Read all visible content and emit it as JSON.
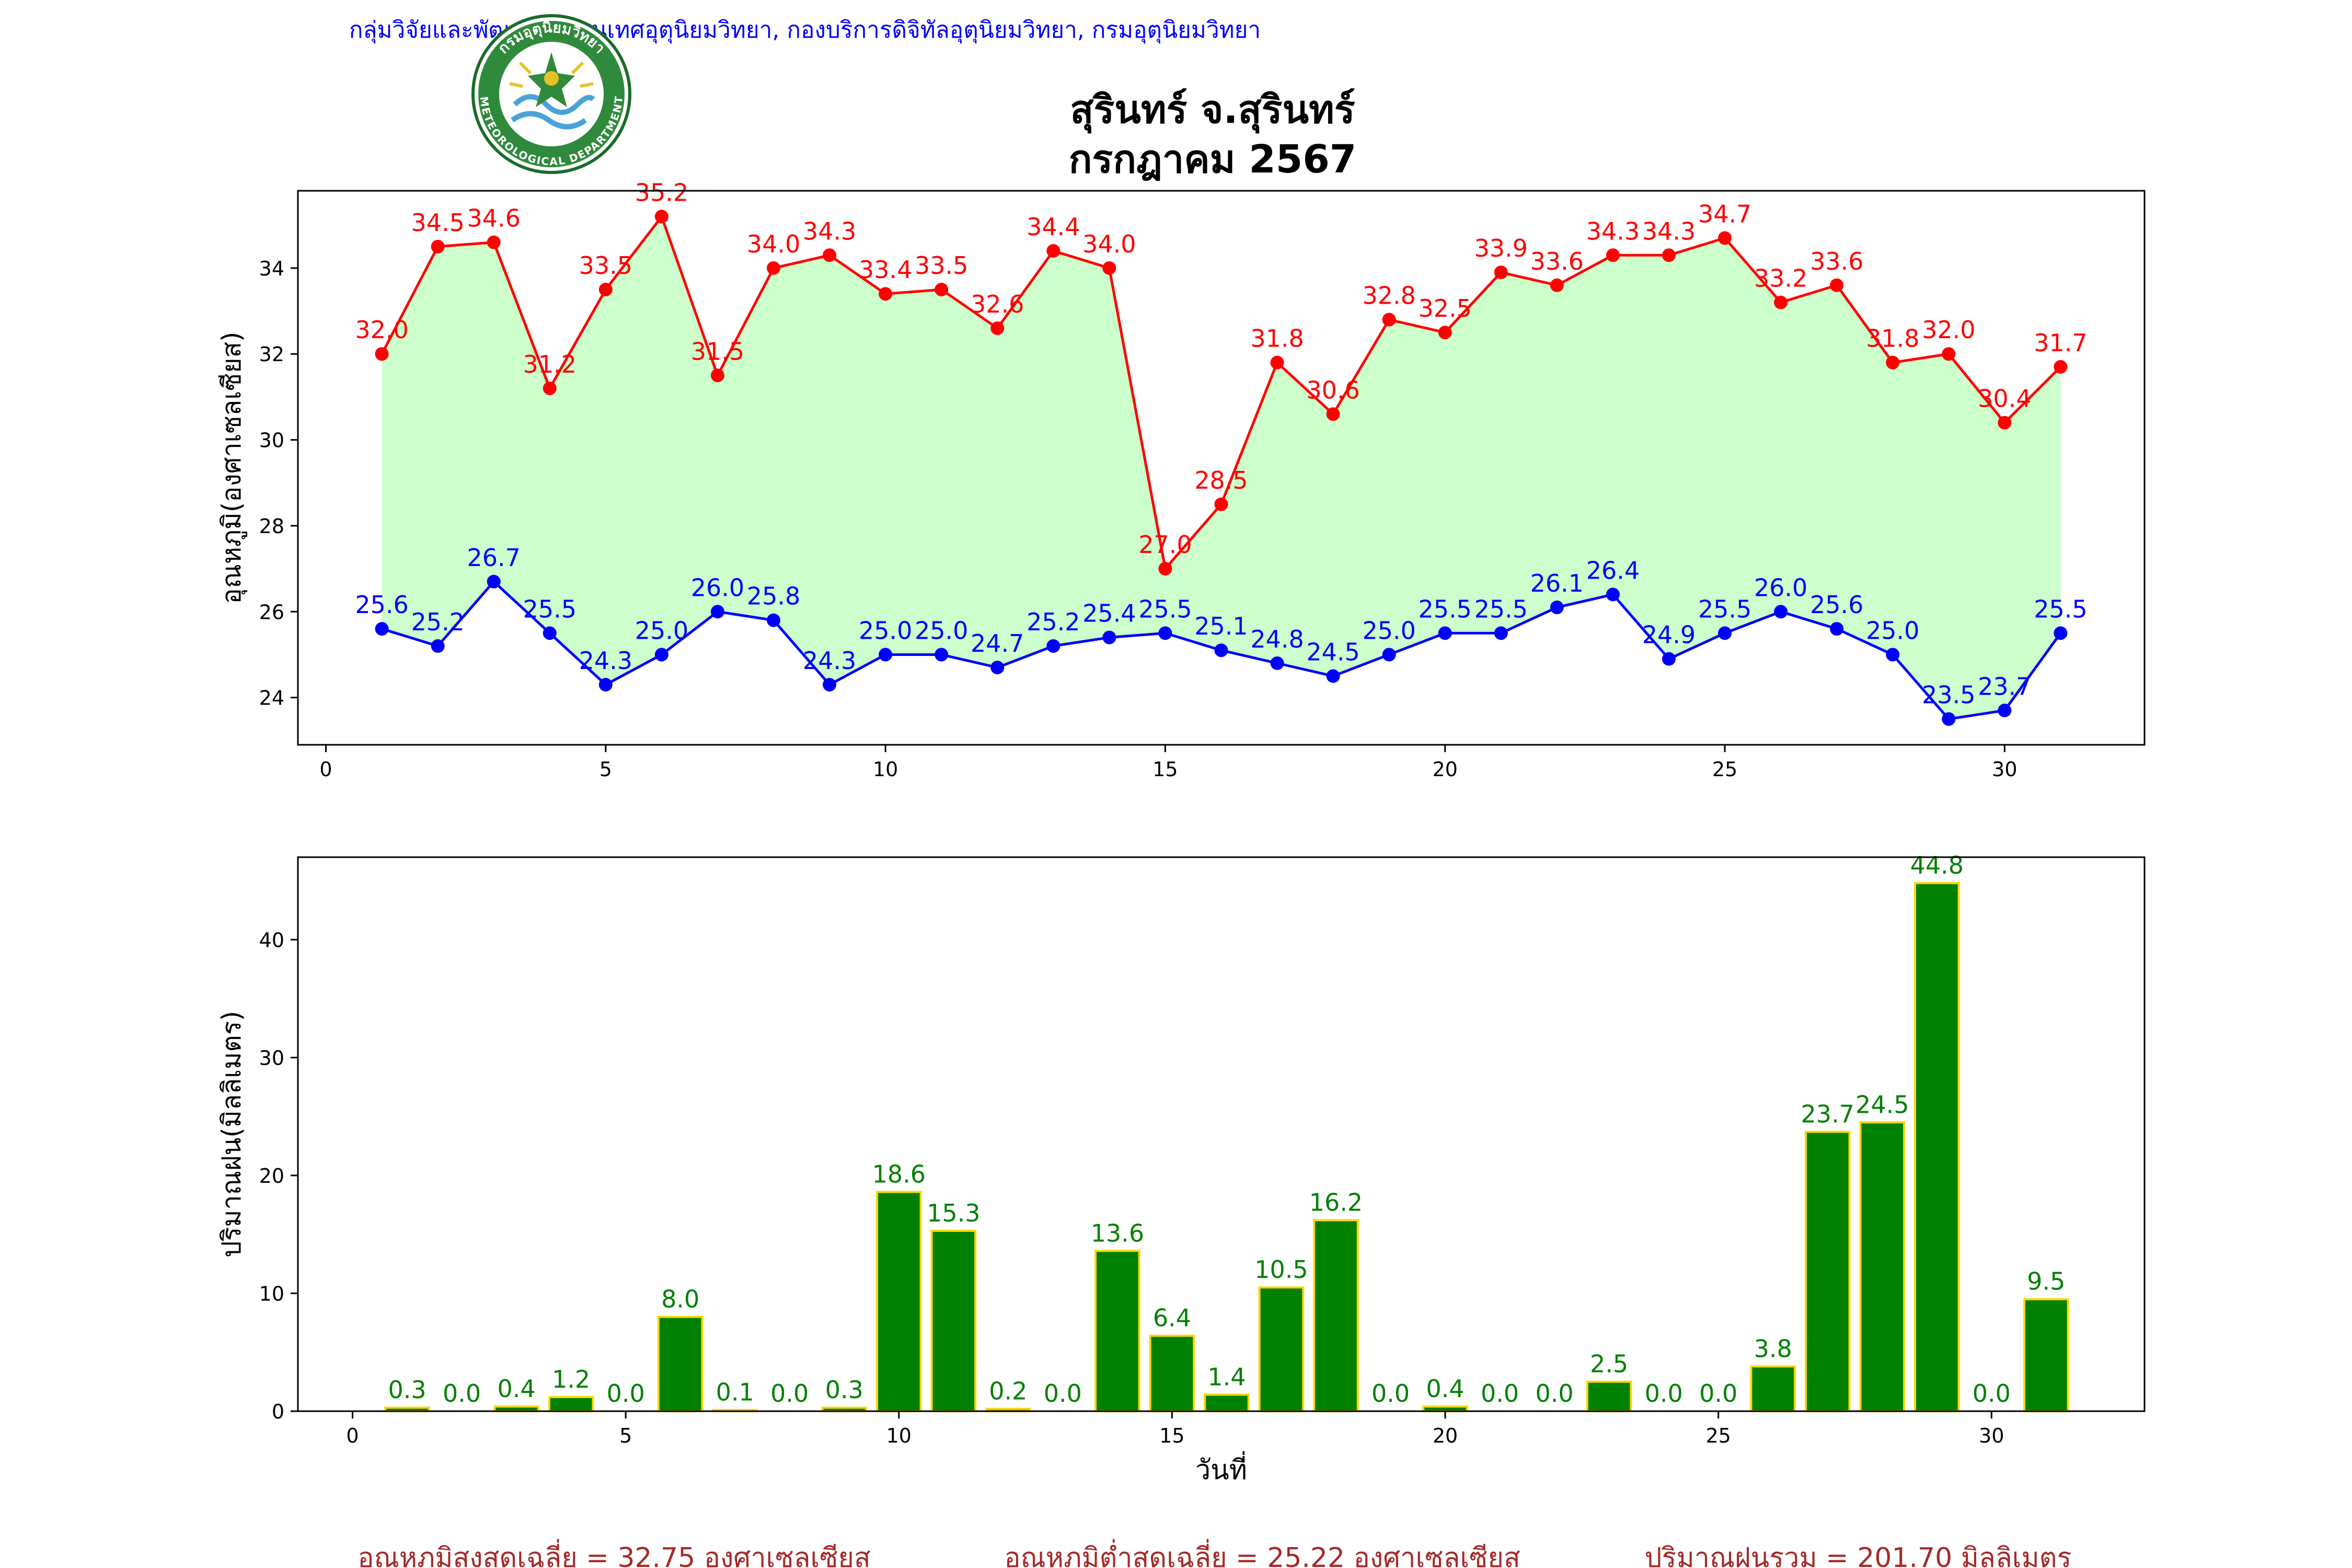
{
  "header": {
    "credit": "กลุ่มวิจัยและพัฒนาสารสนเทศอุตุนิยมวิทยา, กองบริการดิจิทัลอุตุนิยมวิทยา, กรมอุตุนิยมวิทยา",
    "logo_text_top": "กรมอุตุนิยมวิทยา",
    "logo_text_bottom": "METEOROLOGICAL DEPARTMENT"
  },
  "title": {
    "line1": "สุรินทร์ จ.สุรินทร์",
    "line2": "กรกฎาคม 2567"
  },
  "colors": {
    "max_temp": "#ff0000",
    "min_temp": "#0000ff",
    "fill_band": "#ccffcc",
    "rain_bar": "#008000",
    "rain_edge": "#ffd700",
    "rain_label": "#008000",
    "credit": "#0000ff",
    "footer": "#a52a2a"
  },
  "chart_data": [
    {
      "type": "line",
      "ylabel": "อุณหภูมิ(องศาเซลเซียส)",
      "xlim": [
        -0.5,
        32.5
      ],
      "ylim": [
        22.9,
        35.8
      ],
      "xticks": [
        0,
        5,
        10,
        15,
        20,
        25,
        30
      ],
      "yticks": [
        24,
        26,
        28,
        30,
        32,
        34
      ],
      "x": [
        1,
        2,
        3,
        4,
        5,
        6,
        7,
        8,
        9,
        10,
        11,
        12,
        13,
        14,
        15,
        16,
        17,
        18,
        19,
        20,
        21,
        22,
        23,
        24,
        25,
        26,
        27,
        28,
        29,
        30,
        31
      ],
      "series": [
        {
          "key": "max",
          "values": [
            32.0,
            34.5,
            34.6,
            31.2,
            33.5,
            35.2,
            31.5,
            34.0,
            34.3,
            33.4,
            33.5,
            32.6,
            34.4,
            34.0,
            27.0,
            28.5,
            31.8,
            30.6,
            32.8,
            32.5,
            33.9,
            33.6,
            34.3,
            34.3,
            34.7,
            33.2,
            33.6,
            31.8,
            32.0,
            30.4,
            31.7
          ],
          "labels": [
            "32.0",
            "34.5",
            "34.6",
            "31.2",
            "33.5",
            "35.2",
            "31.5",
            "34.0",
            "34.3",
            "33.4",
            "33.5",
            "32.6",
            "34.4",
            "34.0",
            "27.0",
            "28.5",
            "31.8",
            "30.6",
            "32.8",
            "32.5",
            "33.9",
            "33.6",
            "34.3",
            "34.3",
            "34.7",
            "33.2",
            "33.6",
            "31.8",
            "32.0",
            "30.4",
            "31.7"
          ]
        },
        {
          "key": "min",
          "values": [
            25.6,
            25.2,
            26.7,
            25.5,
            24.3,
            25.0,
            26.0,
            25.8,
            24.3,
            25.0,
            25.0,
            24.7,
            25.2,
            25.4,
            25.5,
            25.1,
            24.8,
            24.5,
            25.0,
            25.5,
            25.5,
            26.1,
            26.4,
            24.9,
            25.5,
            26.0,
            25.6,
            25.0,
            23.5,
            23.7,
            25.5
          ],
          "labels": [
            "25.6",
            "25.2",
            "26.7",
            "25.5",
            "24.3",
            "25.0",
            "26.0",
            "25.8",
            "24.3",
            "25.0",
            "25.0",
            "24.7",
            "25.2",
            "25.4",
            "25.5",
            "25.1",
            "24.8",
            "24.5",
            "25.0",
            "25.5",
            "25.5",
            "26.1",
            "26.4",
            "24.9",
            "25.5",
            "26.0",
            "25.6",
            "25.0",
            "23.5",
            "23.7",
            "25.5"
          ]
        }
      ]
    },
    {
      "type": "bar",
      "xlabel": "วันที่",
      "ylabel": "ปริมาณฝน(มิลลิเมตร)",
      "xlim": [
        -1.0,
        32.8
      ],
      "ylim": [
        0,
        47.0
      ],
      "xticks": [
        0,
        5,
        10,
        15,
        20,
        25,
        30
      ],
      "yticks": [
        0,
        10,
        20,
        30,
        40
      ],
      "x": [
        1,
        2,
        3,
        4,
        5,
        6,
        7,
        8,
        9,
        10,
        11,
        12,
        13,
        14,
        15,
        16,
        17,
        18,
        19,
        20,
        21,
        22,
        23,
        24,
        25,
        26,
        27,
        28,
        29,
        30,
        31
      ],
      "values": [
        0.3,
        0.0,
        0.4,
        1.2,
        0.0,
        8.0,
        0.1,
        0.0,
        0.3,
        18.6,
        15.3,
        0.2,
        0.0,
        13.6,
        6.4,
        1.4,
        10.5,
        16.2,
        0.0,
        0.4,
        0.0,
        0.0,
        2.5,
        0.0,
        0.0,
        3.8,
        23.7,
        24.5,
        44.8,
        0.0,
        9.5
      ],
      "labels": [
        "0.3",
        "0.0",
        "0.4",
        "1.2",
        "0.0",
        "8.0",
        "0.1",
        "0.0",
        "0.3",
        "18.6",
        "15.3",
        "0.2",
        "0.0",
        "13.6",
        "6.4",
        "1.4",
        "10.5",
        "16.2",
        "0.0",
        "0.4",
        "0.0",
        "0.0",
        "2.5",
        "0.0",
        "0.0",
        "3.8",
        "23.7",
        "24.5",
        "44.8",
        "0.0",
        "9.5"
      ]
    }
  ],
  "footer": {
    "avg_max": "อุณหภูมิสูงสุดเฉลี่ย = 32.75 องศาเซลเซียส",
    "avg_min": "อุณหภูมิต่ำสุดเฉลี่ย = 25.22 องศาเซลเซียส",
    "total_rain": "ปริมาณฝนรวม = 201.70 มิลลิเมตร"
  }
}
